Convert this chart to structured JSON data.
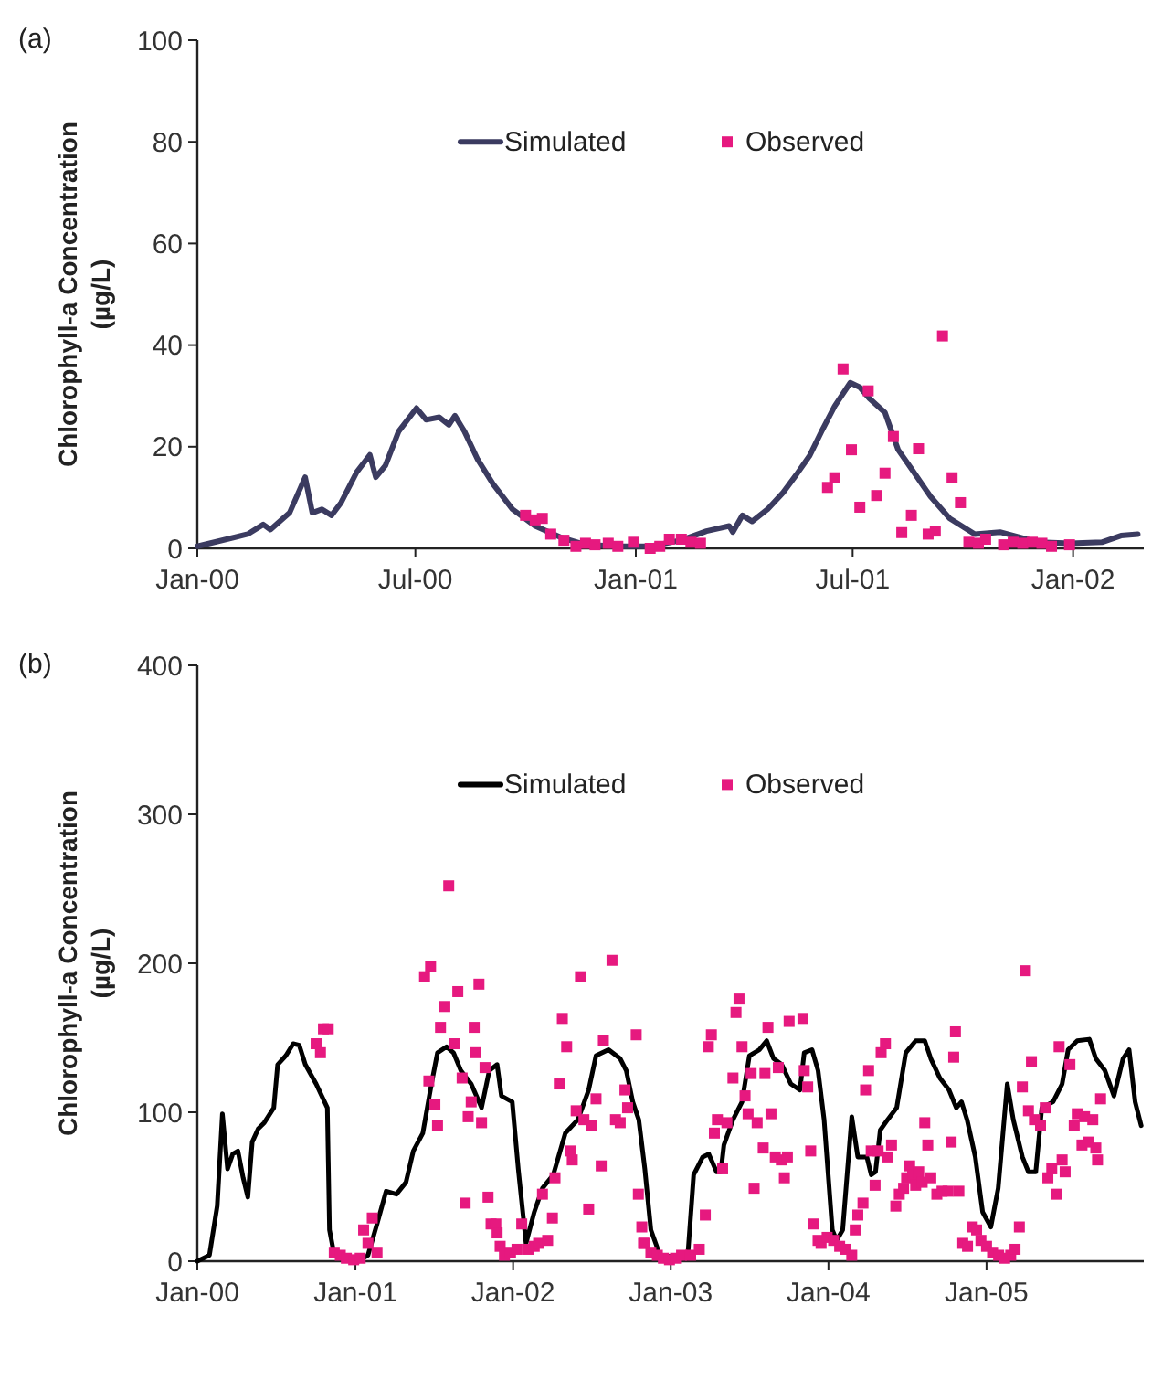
{
  "chart_data": [
    {
      "type": "line",
      "title": "(a)",
      "ylabel": "Chlorophyll-a Concentration (µg/L)",
      "xlim": [
        "2000-01-01",
        "2002-03-01"
      ],
      "ylim": [
        0,
        100
      ],
      "yticks": [
        0,
        20,
        40,
        60,
        80,
        100
      ],
      "xticks": [
        {
          "value": "2000-01-01",
          "label": "Jan-00"
        },
        {
          "value": "2000-07-01",
          "label": "Jul-00"
        },
        {
          "value": "2001-01-01",
          "label": "Jan-01"
        },
        {
          "value": "2001-07-01",
          "label": "Jul-01"
        },
        {
          "value": "2002-01-01",
          "label": "Jan-02"
        }
      ],
      "grid": false,
      "legend": "top",
      "series": [
        {
          "name": "Simulated",
          "color": "#3b3b60",
          "x": [
            "2000-01-01",
            "2000-02-12",
            "2000-02-25",
            "2000-03-02",
            "2000-03-18",
            "2000-03-31",
            "2000-04-06",
            "2000-04-14",
            "2000-04-22",
            "2000-04-30",
            "2000-05-13",
            "2000-05-24",
            "2000-05-29",
            "2000-06-06",
            "2000-06-17",
            "2000-07-02",
            "2000-07-10",
            "2000-07-21",
            "2000-07-29",
            "2000-08-03",
            "2000-08-11",
            "2000-08-22",
            "2000-09-04",
            "2000-09-20",
            "2000-10-09",
            "2000-10-30",
            "2000-11-20",
            "2000-12-17",
            "2001-01-13",
            "2001-02-08",
            "2001-03-01",
            "2001-03-20",
            "2001-03-23",
            "2001-03-31",
            "2001-04-08",
            "2001-04-21",
            "2001-05-04",
            "2001-05-15",
            "2001-05-26",
            "2001-06-05",
            "2001-06-16",
            "2001-06-29",
            "2001-07-07",
            "2001-07-15",
            "2001-07-28",
            "2001-08-08",
            "2001-08-19",
            "2001-09-04",
            "2001-09-20",
            "2001-10-11",
            "2001-11-01",
            "2001-12-03",
            "2001-12-30",
            "2002-01-25",
            "2002-02-10",
            "2002-02-24"
          ],
          "values": [
            0.4,
            2.8,
            4.7,
            3.7,
            7,
            14,
            7,
            7.7,
            6.5,
            9,
            15,
            18.4,
            14,
            16.3,
            23,
            27.6,
            25.3,
            25.8,
            24.3,
            26.1,
            23,
            17.5,
            12.6,
            7.7,
            4.4,
            2.2,
            0.7,
            0.4,
            0.4,
            1.6,
            3.4,
            4.4,
            3.2,
            6.5,
            5.3,
            7.7,
            11,
            14.5,
            18.2,
            23,
            28,
            32.6,
            31.7,
            29.5,
            26.7,
            19.4,
            15.7,
            10.2,
            5.9,
            2.8,
            3.2,
            1.2,
            1,
            1.2,
            2.5,
            2.8
          ]
        },
        {
          "name": "Observed",
          "type": "scatter",
          "marker": "square",
          "color": "#e6197f",
          "x": [
            "2000-10-01",
            "2000-10-09",
            "2000-10-15",
            "2000-10-22",
            "2000-11-02",
            "2000-11-12",
            "2000-11-20",
            "2000-11-28",
            "2000-12-09",
            "2000-12-17",
            "2000-12-30",
            "2001-01-13",
            "2001-01-21",
            "2001-01-29",
            "2001-02-08",
            "2001-02-16",
            "2001-02-24",
            "2001-06-10",
            "2001-06-16",
            "2001-06-23",
            "2001-06-30",
            "2001-07-07",
            "2001-07-14",
            "2001-07-21",
            "2001-07-28",
            "2001-08-04",
            "2001-08-11",
            "2001-08-19",
            "2001-08-25",
            "2001-09-02",
            "2001-09-08",
            "2001-09-14",
            "2001-09-22",
            "2001-09-29",
            "2001-10-06",
            "2001-10-14",
            "2001-10-20",
            "2001-11-04",
            "2001-11-12",
            "2001-11-20",
            "2001-11-28",
            "2001-12-06",
            "2001-12-14",
            "2001-12-29"
          ],
          "values": [
            6.5,
            5.6,
            5.9,
            2.8,
            1.6,
            0.4,
            1,
            0.7,
            1,
            0.4,
            1.2,
            0,
            0.4,
            1.8,
            1.8,
            1.2,
            1,
            12,
            13.9,
            35.3,
            19.4,
            8.1,
            31,
            10.4,
            14.8,
            22,
            3.1,
            6.5,
            19.6,
            2.8,
            3.4,
            41.8,
            13.9,
            9,
            1.2,
            1,
            1.8,
            0.7,
            1.2,
            1,
            1.2,
            1,
            0.4,
            0.7
          ]
        }
      ]
    },
    {
      "type": "line",
      "title": "(b)",
      "ylabel": "Chlorophyll-a Concentration (µg/L)",
      "xlim": [
        "2000-01-01",
        "2005-12-31"
      ],
      "ylim": [
        0,
        400
      ],
      "yticks": [
        0,
        100,
        200,
        300,
        400
      ],
      "xticks": [
        {
          "value": "2000-01-01",
          "label": "Jan-00"
        },
        {
          "value": "2001-01-01",
          "label": "Jan-01"
        },
        {
          "value": "2002-01-01",
          "label": "Jan-02"
        },
        {
          "value": "2003-01-01",
          "label": "Jan-03"
        },
        {
          "value": "2004-01-01",
          "label": "Jan-04"
        },
        {
          "value": "2005-01-01",
          "label": "Jan-05"
        }
      ],
      "grid": false,
      "legend": "top",
      "series": [
        {
          "name": "Simulated",
          "color": "#000000",
          "x": [
            "2000-01-01",
            "2000-01-29",
            "2000-02-16",
            "2000-02-28",
            "2000-03-11",
            "2000-03-23",
            "2000-04-04",
            "2000-04-16",
            "2000-04-27",
            "2000-05-07",
            "2000-05-21",
            "2000-06-04",
            "2000-06-26",
            "2000-07-05",
            "2000-07-24",
            "2000-08-10",
            "2000-08-24",
            "2000-09-07",
            "2000-10-02",
            "2000-10-28",
            "2000-11-02",
            "2000-11-13",
            "2001-01-09",
            "2001-01-30",
            "2001-02-20",
            "2001-03-13",
            "2001-04-06",
            "2001-04-28",
            "2001-05-15",
            "2001-06-06",
            "2001-06-26",
            "2001-07-10",
            "2001-07-31",
            "2001-08-16",
            "2001-09-02",
            "2001-09-26",
            "2001-10-20",
            "2001-11-07",
            "2001-11-25",
            "2001-12-05",
            "2001-12-30",
            "2002-01-13",
            "2002-01-31",
            "2002-02-19",
            "2002-03-10",
            "2002-04-04",
            "2002-05-02",
            "2002-05-31",
            "2002-06-25",
            "2002-07-12",
            "2002-08-10",
            "2002-09-06",
            "2002-09-20",
            "2002-10-05",
            "2002-10-19",
            "2002-11-02",
            "2002-11-16",
            "2002-12-07",
            "2003-02-09",
            "2003-02-23",
            "2003-03-16",
            "2003-03-30",
            "2003-04-17",
            "2003-04-27",
            "2003-05-04",
            "2003-05-25",
            "2003-06-15",
            "2003-07-02",
            "2003-07-25",
            "2003-08-11",
            "2003-08-27",
            "2003-09-15",
            "2003-10-06",
            "2003-10-27",
            "2003-11-06",
            "2003-11-24",
            "2003-12-08",
            "2003-12-22",
            "2004-01-10",
            "2004-01-20",
            "2004-02-03",
            "2004-02-24",
            "2004-03-09",
            "2004-03-30",
            "2004-04-09",
            "2004-04-19",
            "2004-04-30",
            "2004-05-17",
            "2004-06-07",
            "2004-06-28",
            "2004-07-21",
            "2004-08-11",
            "2004-08-25",
            "2004-09-15",
            "2004-10-06",
            "2004-10-23",
            "2004-11-04",
            "2004-11-17",
            "2004-12-06",
            "2004-12-23",
            "2005-01-11",
            "2005-01-28",
            "2005-02-18",
            "2005-03-04",
            "2005-03-25",
            "2005-04-08",
            "2005-04-25",
            "2005-05-09",
            "2005-06-04",
            "2005-06-25",
            "2005-07-09",
            "2005-07-30",
            "2005-08-27",
            "2005-09-11",
            "2005-10-02",
            "2005-10-23",
            "2005-11-13",
            "2005-11-27",
            "2005-12-11",
            "2005-12-25"
          ],
          "values": [
            0,
            4,
            37,
            99,
            62,
            72,
            74,
            56,
            43,
            80,
            89,
            93,
            103,
            132,
            138,
            146,
            145,
            132,
            119,
            103,
            21,
            4,
            0,
            4,
            25,
            47,
            45,
            53,
            74,
            86,
            119,
            140,
            144,
            140,
            128,
            119,
            103,
            128,
            132,
            111,
            107,
            62,
            12,
            33,
            49,
            58,
            86,
            95,
            115,
            138,
            142,
            136,
            128,
            107,
            95,
            62,
            21,
            4,
            2,
            58,
            70,
            72,
            60,
            60,
            78,
            95,
            107,
            138,
            142,
            148,
            136,
            132,
            119,
            115,
            140,
            142,
            128,
            95,
            21,
            14,
            21,
            97,
            70,
            70,
            58,
            60,
            88,
            95,
            103,
            140,
            148,
            148,
            136,
            123,
            115,
            103,
            107,
            95,
            70,
            33,
            23,
            49,
            119,
            95,
            70,
            60,
            60,
            103,
            107,
            119,
            142,
            148,
            149,
            136,
            128,
            111,
            136,
            142,
            107,
            91
          ]
        },
        {
          "name": "Observed",
          "type": "scatter",
          "marker": "square",
          "color": "#e6197f",
          "x": [
            "2000-10-02",
            "2000-10-12",
            "2000-10-19",
            "2000-10-30",
            "2000-11-13",
            "2000-11-27",
            "2000-12-11",
            "2000-12-28",
            "2001-01-12",
            "2001-01-20",
            "2001-01-30",
            "2001-02-09",
            "2001-02-20",
            "2001-06-10",
            "2001-06-24",
            "2001-06-20",
            "2001-07-04",
            "2001-07-10",
            "2001-07-17",
            "2001-07-27",
            "2001-08-05",
            "2001-08-19",
            "2001-08-26",
            "2001-09-05",
            "2001-09-12",
            "2001-09-19",
            "2001-09-26",
            "2001-10-03",
            "2001-10-07",
            "2001-10-14",
            "2001-10-20",
            "2001-10-28",
            "2001-11-04",
            "2001-11-11",
            "2001-11-22",
            "2001-11-25",
            "2001-12-02",
            "2001-12-12",
            "2001-12-26",
            "2002-01-10",
            "2002-01-21",
            "2002-02-05",
            "2002-02-19",
            "2002-03-01",
            "2002-03-10",
            "2002-03-22",
            "2002-04-02",
            "2002-04-08",
            "2002-04-18",
            "2002-04-25",
            "2002-05-05",
            "2002-05-13",
            "2002-05-18",
            "2002-05-27",
            "2002-06-06",
            "2002-06-14",
            "2002-06-25",
            "2002-07-01",
            "2002-07-12",
            "2002-07-24",
            "2002-07-29",
            "2002-08-18",
            "2002-08-26",
            "2002-09-06",
            "2002-09-17",
            "2002-09-23",
            "2002-10-13",
            "2002-10-18",
            "2002-10-26",
            "2002-10-30",
            "2002-11-02",
            "2002-11-16",
            "2002-12-01",
            "2002-12-15",
            "2002-12-29",
            "2003-01-12",
            "2003-01-26",
            "2003-02-16",
            "2003-03-08",
            "2003-03-22",
            "2003-03-29",
            "2003-04-05",
            "2003-04-12",
            "2003-04-19",
            "2003-05-01",
            "2003-05-11",
            "2003-05-25",
            "2003-06-01",
            "2003-06-08",
            "2003-06-15",
            "2003-06-22",
            "2003-06-29",
            "2003-07-06",
            "2003-07-13",
            "2003-07-20",
            "2003-08-03",
            "2003-08-07",
            "2003-08-14",
            "2003-08-21",
            "2003-08-31",
            "2003-09-07",
            "2003-09-14",
            "2003-09-21",
            "2003-09-28",
            "2003-10-02",
            "2003-11-03",
            "2003-11-06",
            "2003-11-14",
            "2003-11-21",
            "2003-11-28",
            "2003-12-08",
            "2003-12-15",
            "2003-12-29",
            "2004-01-13",
            "2004-01-27",
            "2004-02-10",
            "2004-02-24",
            "2004-03-03",
            "2004-03-09",
            "2004-03-21",
            "2004-03-27",
            "2004-04-03",
            "2004-04-09",
            "2004-04-18",
            "2004-04-25",
            "2004-05-02",
            "2004-05-12",
            "2004-05-16",
            "2004-05-26",
            "2004-06-05",
            "2004-06-13",
            "2004-06-23",
            "2004-06-30",
            "2004-07-07",
            "2004-07-14",
            "2004-07-21",
            "2004-07-28",
            "2004-08-05",
            "2004-08-11",
            "2004-08-18",
            "2004-08-25",
            "2004-09-08",
            "2004-09-20",
            "2004-10-04",
            "2004-10-11",
            "2004-10-17",
            "2004-10-21",
            "2004-10-29",
            "2004-11-07",
            "2004-11-18",
            "2004-11-29",
            "2004-12-09",
            "2004-12-19",
            "2005-01-01",
            "2005-01-15",
            "2005-01-29",
            "2005-02-12",
            "2005-02-26",
            "2005-03-08",
            "2005-03-18",
            "2005-03-25",
            "2005-04-01",
            "2005-04-08",
            "2005-04-15",
            "2005-04-22",
            "2005-05-06",
            "2005-05-17",
            "2005-05-23",
            "2005-06-01",
            "2005-06-11",
            "2005-06-18",
            "2005-06-25",
            "2005-07-02",
            "2005-07-13",
            "2005-07-23",
            "2005-07-30",
            "2005-08-10",
            "2005-08-16",
            "2005-08-25",
            "2005-09-04",
            "2005-09-11",
            "2005-09-15",
            "2005-09-22"
          ],
          "values": [
            146,
            140,
            156,
            156,
            6,
            4,
            2,
            1,
            2,
            21,
            12,
            29,
            6,
            191,
            198,
            121,
            105,
            91,
            157,
            171,
            252,
            146,
            181,
            123,
            39,
            97,
            107,
            157,
            140,
            186,
            93,
            130,
            43,
            25,
            25,
            19,
            10,
            4,
            6,
            8,
            25,
            8,
            10,
            12,
            45,
            14,
            29,
            56,
            119,
            163,
            144,
            74,
            68,
            101,
            191,
            95,
            35,
            91,
            109,
            64,
            148,
            202,
            95,
            93,
            115,
            103,
            152,
            45,
            23,
            12,
            12,
            6,
            4,
            2,
            1,
            2,
            4,
            4,
            8,
            31,
            144,
            152,
            86,
            95,
            62,
            93,
            123,
            167,
            176,
            144,
            111,
            99,
            126,
            49,
            93,
            76,
            126,
            157,
            99,
            70,
            130,
            68,
            56,
            70,
            161,
            163,
            128,
            117,
            74,
            25,
            14,
            12,
            16,
            14,
            10,
            8,
            4,
            21,
            31,
            39,
            115,
            128,
            74,
            51,
            74,
            140,
            146,
            70,
            78,
            37,
            45,
            49,
            56,
            64,
            58,
            51,
            60,
            53,
            93,
            78,
            56,
            45,
            47,
            47,
            80,
            137,
            154,
            47,
            12,
            10,
            23,
            21,
            14,
            10,
            6,
            4,
            2,
            4,
            8,
            23,
            117,
            195,
            101,
            134,
            95,
            91,
            103,
            56,
            62,
            45,
            144,
            68,
            60,
            132,
            91,
            99,
            78,
            97,
            80,
            95,
            76,
            68,
            109
          ]
        }
      ]
    }
  ]
}
